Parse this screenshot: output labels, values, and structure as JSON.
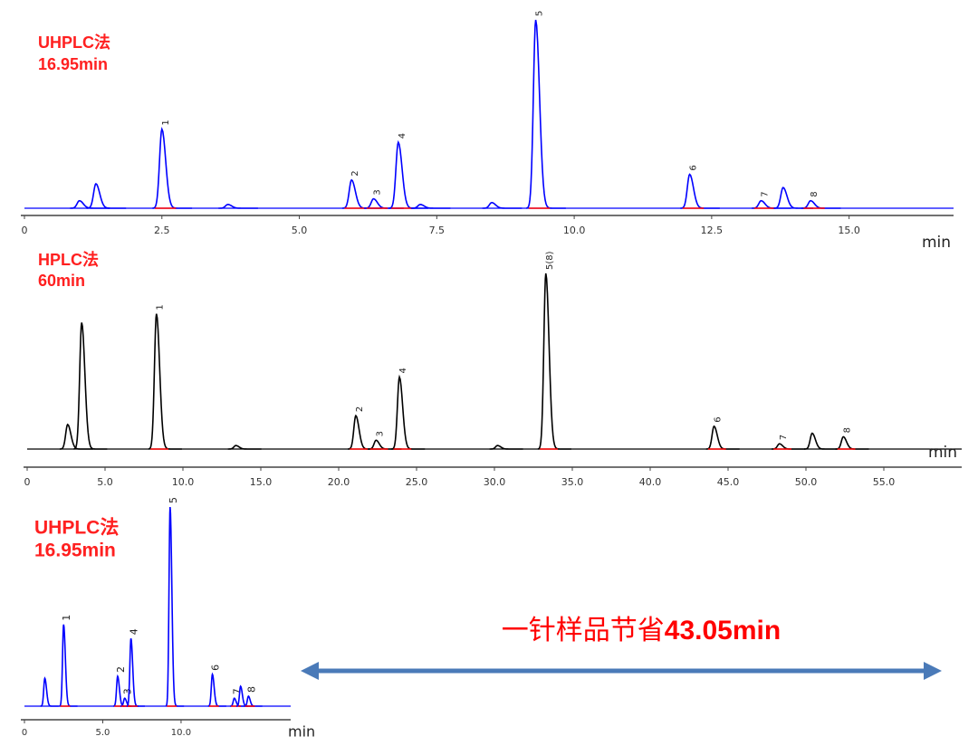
{
  "chart_data": [
    {
      "type": "line",
      "annotation": [
        "UHPLC法",
        "16.95min"
      ],
      "xlabel": "min",
      "color": "#0000ff",
      "xlim": [
        0,
        16.9
      ],
      "ylim": [
        0,
        100
      ],
      "xticks": [
        0,
        2.5,
        {
          "value": 5,
          "label": "5.0"
        },
        7.5,
        {
          "value": 10,
          "label": "10.0"
        },
        12.5,
        {
          "value": 15,
          "label": "15.0"
        }
      ],
      "x": [
        1.0,
        1.3,
        2.5,
        3.7,
        5.95,
        6.35,
        6.8,
        7.2,
        8.5,
        9.3,
        12.1,
        13.4,
        13.8,
        14.3
      ],
      "values": [
        4,
        13,
        42,
        2,
        15,
        5,
        35,
        2,
        3,
        100,
        18,
        4,
        11,
        4
      ],
      "peak_labels": [
        null,
        null,
        "1",
        null,
        "2",
        "3",
        "4",
        null,
        null,
        "5",
        "6",
        "7",
        null,
        "8"
      ]
    },
    {
      "type": "line",
      "annotation": [
        "HPLC法",
        "60min"
      ],
      "xlabel": "min",
      "color": "#000000",
      "xlim": [
        0,
        60
      ],
      "ylim": [
        0,
        100
      ],
      "xticks": [
        0,
        {
          "value": 5,
          "label": "5.0"
        },
        {
          "value": 10,
          "label": "10.0"
        },
        {
          "value": 15,
          "label": "15.0"
        },
        {
          "value": 20,
          "label": "20.0"
        },
        {
          "value": 25,
          "label": "25.0"
        },
        {
          "value": 30,
          "label": "30.0"
        },
        {
          "value": 35,
          "label": "35.0"
        },
        {
          "value": 40,
          "label": "40.0"
        },
        {
          "value": 45,
          "label": "45.0"
        },
        {
          "value": 50,
          "label": "50.0"
        },
        {
          "value": 55,
          "label": "55.0"
        }
      ],
      "x": [
        2.6,
        3.5,
        8.3,
        13.4,
        21.1,
        22.4,
        23.9,
        30.2,
        33.3,
        44.1,
        48.3,
        50.4,
        52.4
      ],
      "values": [
        14,
        72,
        77,
        2,
        19,
        5,
        41,
        2,
        100,
        13,
        3,
        9,
        7
      ],
      "peak_labels": [
        null,
        null,
        "1",
        null,
        "2",
        "3",
        "4",
        null,
        "5(8)",
        "6",
        "7",
        null,
        "8"
      ]
    },
    {
      "type": "line",
      "annotation": [
        "UHPLC法",
        "16.95min"
      ],
      "xlabel": "min",
      "color": "#0000ff",
      "xlim": [
        0,
        17
      ],
      "ylim": [
        0,
        100
      ],
      "xticks": [
        0,
        {
          "value": 5,
          "label": "5.0"
        },
        {
          "value": 10,
          "label": "10.0"
        }
      ],
      "x": [
        1.3,
        2.5,
        5.95,
        6.4,
        6.8,
        9.3,
        12.0,
        13.4,
        13.8,
        14.3
      ],
      "values": [
        14,
        41,
        15,
        4,
        34,
        100,
        16,
        4,
        10,
        5
      ],
      "peak_labels": [
        null,
        "1",
        "2",
        "3",
        "4",
        "5",
        "6",
        "7",
        null,
        "8"
      ]
    }
  ],
  "savings": {
    "prefix": "一针样品节省",
    "value": "43.05min"
  }
}
